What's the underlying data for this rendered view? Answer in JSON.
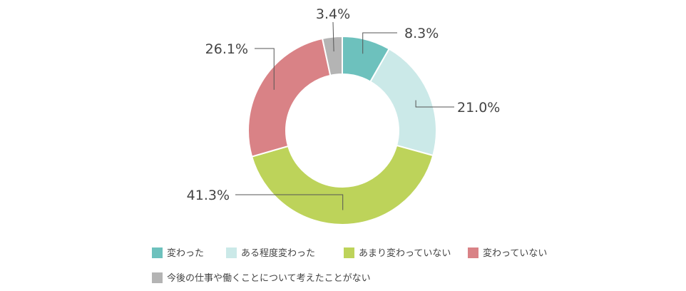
{
  "chart_data": {
    "type": "pie",
    "variant": "donut",
    "title": "",
    "slices": [
      {
        "label": "変わった",
        "value": 8.3,
        "display": "8.3%",
        "color": "#6dc1bd"
      },
      {
        "label": "ある程度変わった",
        "value": 21.0,
        "display": "21.0%",
        "color": "#cbe9e8"
      },
      {
        "label": "あまり変わっていない",
        "value": 41.3,
        "display": "41.3%",
        "color": "#bdd35a"
      },
      {
        "label": "変わっていない",
        "value": 26.1,
        "display": "26.1%",
        "color": "#d98286"
      },
      {
        "label": "今後の仕事や働くことについて考えたことがない",
        "value": 3.4,
        "display": "3.4%",
        "color": "#b4b4b4"
      }
    ],
    "start_angle": "12 o'clock",
    "direction": "clockwise",
    "legend_position": "bottom"
  }
}
